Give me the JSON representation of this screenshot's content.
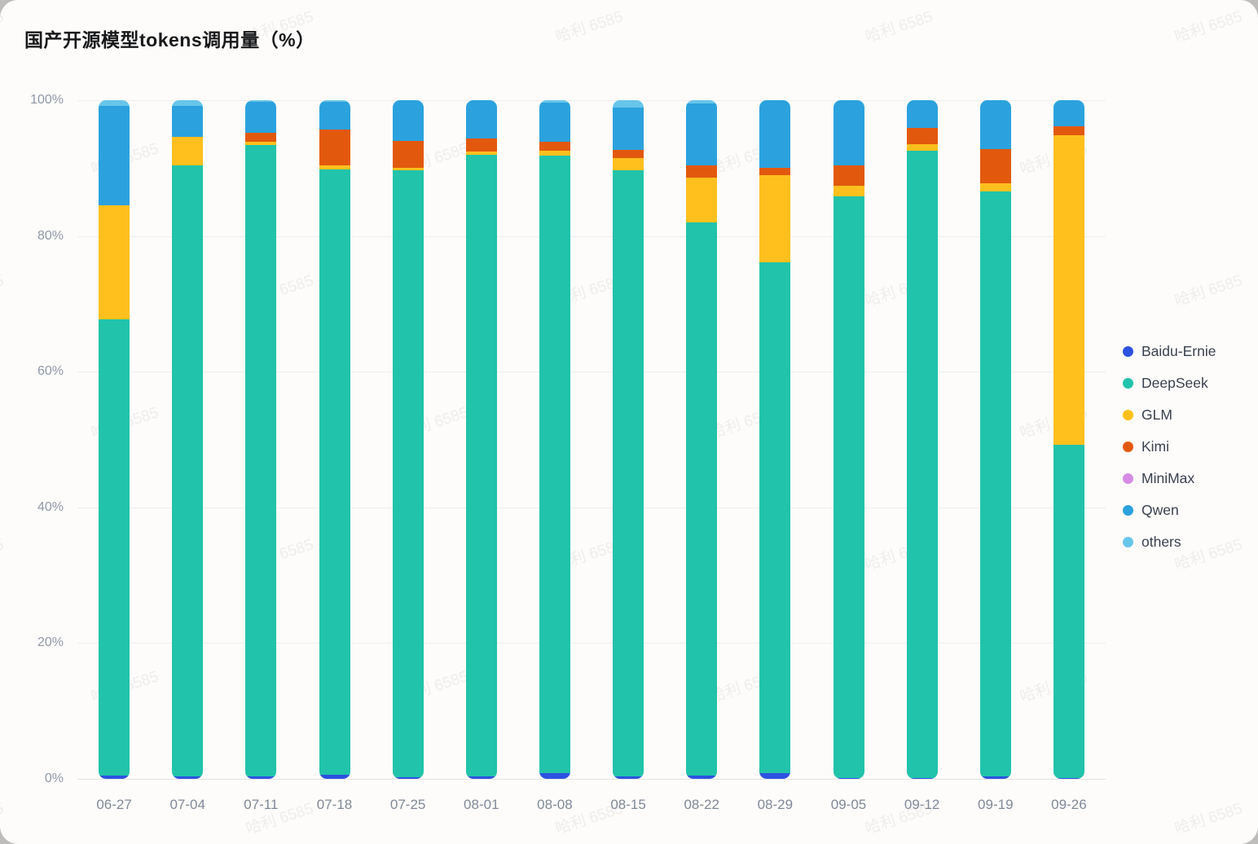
{
  "page": {
    "watermark_text": "哈利 6585",
    "card_background": "#fdfcfa",
    "page_background": "#bfbdbb"
  },
  "header": {
    "title": "国产开源模型tokens调用量（%）"
  },
  "axes": {
    "y_ticks": [
      "0%",
      "20%",
      "40%",
      "60%",
      "80%",
      "100%"
    ],
    "grid_color": "#eeeeee"
  },
  "chart_data": {
    "type": "bar",
    "stacked": true,
    "title": "国产开源模型tokens调用量（%）",
    "xlabel": "",
    "ylabel": "",
    "ylim": [
      0,
      100
    ],
    "grid": true,
    "legend_position": "right",
    "categories": [
      "06-27",
      "07-04",
      "07-11",
      "07-18",
      "07-25",
      "08-01",
      "08-08",
      "08-15",
      "08-22",
      "08-29",
      "09-05",
      "09-12",
      "09-19",
      "09-26"
    ],
    "series": [
      {
        "name": "Baidu-Ernie",
        "color": "#2d52e0",
        "values": [
          0.5,
          0.4,
          0.4,
          0.6,
          0.2,
          0.3,
          0.8,
          0.3,
          0.5,
          0.8,
          0.1,
          0.1,
          0.3,
          0.1
        ]
      },
      {
        "name": "DeepSeek",
        "color": "#21c3aa",
        "values": [
          67.2,
          90.0,
          93.0,
          89.2,
          89.5,
          91.7,
          91.0,
          89.4,
          81.5,
          75.3,
          85.7,
          92.4,
          86.2,
          49.1
        ]
      },
      {
        "name": "GLM",
        "color": "#ffc01e",
        "values": [
          16.8,
          4.2,
          0.5,
          0.6,
          0.3,
          0.4,
          0.7,
          1.8,
          6.6,
          12.9,
          1.6,
          1.0,
          1.2,
          45.6
        ]
      },
      {
        "name": "Kimi",
        "color": "#e2590d",
        "values": [
          0,
          0,
          1.3,
          5.3,
          4.0,
          2.0,
          1.4,
          1.2,
          1.8,
          1.0,
          3.0,
          2.4,
          5.1,
          1.4
        ]
      },
      {
        "name": "MiniMax",
        "color": "#d78be4",
        "values": [
          0,
          0,
          0,
          0,
          0,
          0,
          0,
          0,
          0,
          0,
          0,
          0,
          0,
          0
        ]
      },
      {
        "name": "Qwen",
        "color": "#2ba2de",
        "values": [
          14.7,
          4.6,
          4.5,
          4.0,
          6.0,
          5.6,
          5.7,
          6.2,
          9.1,
          10.0,
          9.6,
          4.1,
          7.2,
          3.8
        ]
      },
      {
        "name": "others",
        "color": "#68c5ea",
        "values": [
          0.8,
          0.8,
          0.3,
          0.3,
          0,
          0,
          0.4,
          1.1,
          0.5,
          0,
          0,
          0,
          0,
          0
        ]
      }
    ]
  }
}
